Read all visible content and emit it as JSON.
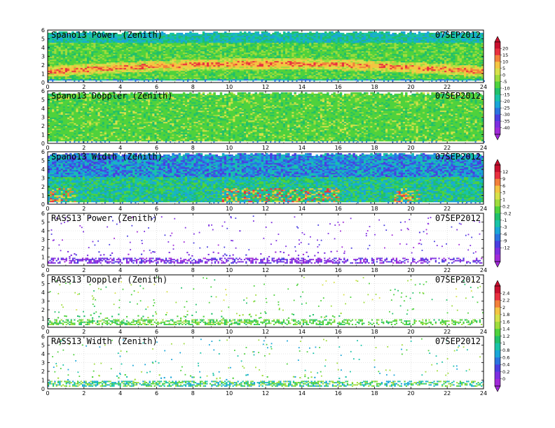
{
  "date_label": "07SEP2012",
  "chart_data": [
    {
      "type": "heatmap",
      "title": "Spano13 Power (Zenith)",
      "date": "07SEP2012",
      "x_ticks": [
        0,
        2,
        4,
        6,
        8,
        10,
        12,
        14,
        16,
        18,
        20,
        22,
        24
      ],
      "y_ticks": [
        0,
        1,
        2,
        3,
        4,
        5,
        6
      ],
      "xlim": [
        0,
        24
      ],
      "ylim": [
        0,
        6
      ],
      "coverage": "dense",
      "pattern": "power_band",
      "colorbar_group": 1
    },
    {
      "type": "heatmap",
      "title": "Spano13 Doppler (Zenith)",
      "date": "07SEP2012",
      "x_ticks": [
        0,
        2,
        4,
        6,
        8,
        10,
        12,
        14,
        16,
        18,
        20,
        22,
        24
      ],
      "y_ticks": [
        0,
        1,
        2,
        3,
        4,
        5,
        6
      ],
      "xlim": [
        0,
        24
      ],
      "ylim": [
        0,
        6
      ],
      "coverage": "dense",
      "pattern": "doppler",
      "colorbar_group": 1
    },
    {
      "type": "heatmap",
      "title": "Spano13 Width (Zenith)",
      "date": "07SEP2012",
      "x_ticks": [
        0,
        2,
        4,
        6,
        8,
        10,
        12,
        14,
        16,
        18,
        20,
        22,
        24
      ],
      "y_ticks": [
        0,
        1,
        2,
        3,
        4,
        5,
        6
      ],
      "xlim": [
        0,
        24
      ],
      "ylim": [
        0,
        6
      ],
      "coverage": "dense",
      "pattern": "width",
      "colorbar_group": 2
    },
    {
      "type": "heatmap",
      "title": "RASS13 Power (Zenith)",
      "date": "07SEP2012",
      "x_ticks": [
        0,
        2,
        4,
        6,
        8,
        10,
        12,
        14,
        16,
        18,
        20,
        22,
        24
      ],
      "y_ticks": [
        0,
        1,
        2,
        3,
        4,
        5,
        6
      ],
      "xlim": [
        0,
        24
      ],
      "ylim": [
        0,
        6
      ],
      "coverage": "sparse",
      "pattern": "rass_power",
      "colorbar_group": 2
    },
    {
      "type": "heatmap",
      "title": "RASS13 Doppler (Zenith)",
      "date": "07SEP2012",
      "x_ticks": [
        0,
        2,
        4,
        6,
        8,
        10,
        12,
        14,
        16,
        18,
        20,
        22,
        24
      ],
      "y_ticks": [
        0,
        1,
        2,
        3,
        4,
        5,
        6
      ],
      "xlim": [
        0,
        24
      ],
      "ylim": [
        0,
        6
      ],
      "coverage": "sparse",
      "pattern": "rass_doppler",
      "colorbar_group": 3
    },
    {
      "type": "heatmap",
      "title": "RASS13 Width (Zenith)",
      "date": "07SEP2012",
      "x_ticks": [
        0,
        2,
        4,
        6,
        8,
        10,
        12,
        14,
        16,
        18,
        20,
        22,
        24
      ],
      "y_ticks": [
        0,
        1,
        2,
        3,
        4,
        5,
        6
      ],
      "xlim": [
        0,
        24
      ],
      "ylim": [
        0,
        6
      ],
      "coverage": "sparse",
      "pattern": "rass_width",
      "colorbar_group": 3
    }
  ],
  "colorbars": [
    {
      "labels": [
        "20",
        "15",
        "10",
        "5",
        "0",
        "-5",
        "-10",
        "-15",
        "-20",
        "-25",
        "-30",
        "-35",
        "-40"
      ],
      "colors": [
        "#c8102e",
        "#e8303f",
        "#f2803a",
        "#f4c542",
        "#d7e14a",
        "#9fdc3c",
        "#4fd23d",
        "#21c06a",
        "#19c3a8",
        "#1aa6d8",
        "#2a73e0",
        "#4a3ee0",
        "#7d2ee0",
        "#a12ad8"
      ]
    },
    {
      "labels": [
        "12",
        "9",
        "6",
        "3",
        "1",
        "0.2",
        "-0.2",
        "-1",
        "-3",
        "-6",
        "-9",
        "-12"
      ],
      "colors": [
        "#c8102e",
        "#e8303f",
        "#f2803a",
        "#f4c542",
        "#d7e14a",
        "#9fdc3c",
        "#4fd23d",
        "#21c06a",
        "#19c3a8",
        "#1aa6d8",
        "#2a73e0",
        "#4a3ee0",
        "#7d2ee0",
        "#a12ad8"
      ]
    },
    {
      "labels": [
        "2.4",
        "2.2",
        "2",
        "1.8",
        "1.6",
        "1.4",
        "1.2",
        "1",
        "0.8",
        "0.6",
        "0.4",
        "0.2",
        "0"
      ],
      "colors": [
        "#c8102e",
        "#e8303f",
        "#f2803a",
        "#f4c542",
        "#d7e14a",
        "#9fdc3c",
        "#4fd23d",
        "#21c06a",
        "#19c3a8",
        "#1aa6d8",
        "#2a73e0",
        "#4a3ee0",
        "#7d2ee0",
        "#a12ad8"
      ]
    }
  ]
}
